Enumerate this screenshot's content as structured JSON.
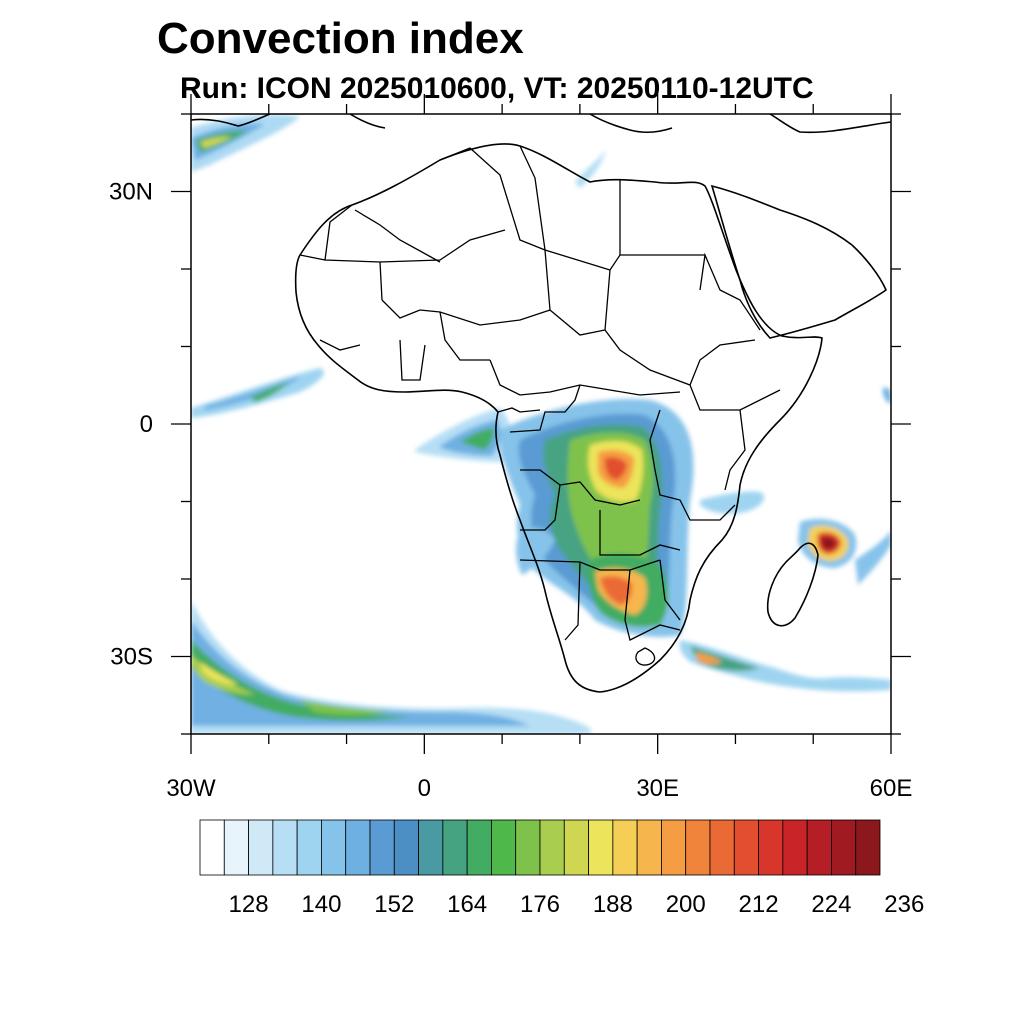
{
  "title": "Convection index",
  "subtitle": "Run: ICON 2025010600,  VT: 20250110-12UTC",
  "map": {
    "lon_range": [
      -30,
      60
    ],
    "lat_range": [
      -40,
      40
    ],
    "x_ticks": [
      {
        "value": -30,
        "label": "30W"
      },
      {
        "value": 0,
        "label": "0"
      },
      {
        "value": 30,
        "label": "30E"
      },
      {
        "value": 60,
        "label": "60E"
      }
    ],
    "y_ticks": [
      {
        "value": 30,
        "label": "30N"
      },
      {
        "value": 0,
        "label": "0"
      },
      {
        "value": -30,
        "label": "30S"
      }
    ],
    "colors": {
      "land_border": "#000000",
      "ocean": "#ffffff"
    }
  },
  "colorbar": {
    "labels": [
      "128",
      "140",
      "152",
      "164",
      "176",
      "188",
      "200",
      "212",
      "224",
      "236"
    ],
    "colors": [
      "#ffffff",
      "#e8f4fb",
      "#cfe9f7",
      "#b6def5",
      "#9fd4f1",
      "#86c3ea",
      "#6fb0e2",
      "#5a9bd3",
      "#4b8fc4",
      "#4a9aa4",
      "#46a382",
      "#42ac62",
      "#4fb84b",
      "#7fc24b",
      "#a8cd4f",
      "#cfd752",
      "#ece45a",
      "#f5cf55",
      "#f6b64d",
      "#f59d43",
      "#f0843b",
      "#ea6a35",
      "#e24f2f",
      "#d9362b",
      "#c92529",
      "#b61e26",
      "#a01a21",
      "#8c171c"
    ]
  }
}
